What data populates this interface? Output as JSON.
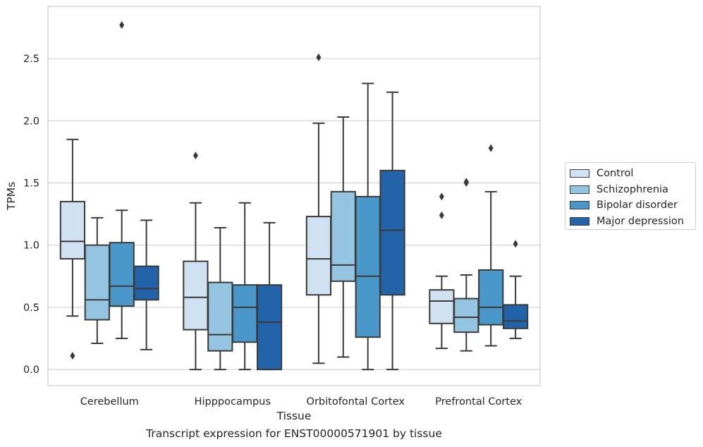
{
  "caption": "Transcript expression for ENST00000571901 by tissue",
  "colors": {
    "Control": "#d0e1f2",
    "Schizophrenia": "#94c4df",
    "Bipolar disorder": "#4a98c9",
    "Major depression": "#2363aa",
    "grid": "#cccccc",
    "box_edge": "#3a3a3a"
  },
  "legend": {
    "placement": "outside-right",
    "items": [
      {
        "label": "Control"
      },
      {
        "label": "Schizophrenia"
      },
      {
        "label": "Bipolar disorder"
      },
      {
        "label": "Major depression"
      }
    ]
  },
  "chart_data": {
    "type": "box",
    "xlabel": "Tissue",
    "ylabel": "TPMs",
    "ylim": [
      -0.13,
      2.92
    ],
    "yticks": [
      "0.0",
      "0.5",
      "1.0",
      "1.5",
      "2.0",
      "2.5"
    ],
    "grid": true,
    "categories": [
      "Cerebellum",
      "Hipppocampus",
      "Orbitofontal Cortex",
      "Prefrontal Cortex"
    ],
    "series": [
      {
        "name": "Control",
        "boxes": [
          {
            "whisker_low": 0.43,
            "q1": 0.89,
            "median": 1.03,
            "q3": 1.35,
            "whisker_high": 1.85,
            "outliers": [
              0.11
            ]
          },
          {
            "whisker_low": 0.0,
            "q1": 0.32,
            "median": 0.58,
            "q3": 0.87,
            "whisker_high": 1.34,
            "outliers": [
              1.72
            ]
          },
          {
            "whisker_low": 0.05,
            "q1": 0.6,
            "median": 0.89,
            "q3": 1.23,
            "whisker_high": 1.98,
            "outliers": [
              2.51
            ]
          },
          {
            "whisker_low": 0.17,
            "q1": 0.37,
            "median": 0.55,
            "q3": 0.64,
            "whisker_high": 0.75,
            "outliers": [
              1.24,
              1.39
            ]
          }
        ]
      },
      {
        "name": "Schizophrenia",
        "boxes": [
          {
            "whisker_low": 0.21,
            "q1": 0.4,
            "median": 0.56,
            "q3": 1.0,
            "whisker_high": 1.22,
            "outliers": []
          },
          {
            "whisker_low": 0.0,
            "q1": 0.15,
            "median": 0.28,
            "q3": 0.7,
            "whisker_high": 1.14,
            "outliers": []
          },
          {
            "whisker_low": 0.1,
            "q1": 0.71,
            "median": 0.84,
            "q3": 1.43,
            "whisker_high": 2.03,
            "outliers": []
          },
          {
            "whisker_low": 0.15,
            "q1": 0.3,
            "median": 0.42,
            "q3": 0.57,
            "whisker_high": 0.76,
            "outliers": [
              1.5,
              1.51
            ]
          }
        ]
      },
      {
        "name": "Bipolar disorder",
        "boxes": [
          {
            "whisker_low": 0.25,
            "q1": 0.51,
            "median": 0.67,
            "q3": 1.02,
            "whisker_high": 1.28,
            "outliers": [
              2.77
            ]
          },
          {
            "whisker_low": 0.0,
            "q1": 0.22,
            "median": 0.5,
            "q3": 0.68,
            "whisker_high": 1.34,
            "outliers": []
          },
          {
            "whisker_low": 0.0,
            "q1": 0.26,
            "median": 0.75,
            "q3": 1.39,
            "whisker_high": 2.3,
            "outliers": []
          },
          {
            "whisker_low": 0.19,
            "q1": 0.36,
            "median": 0.5,
            "q3": 0.8,
            "whisker_high": 1.43,
            "outliers": [
              1.78
            ]
          }
        ]
      },
      {
        "name": "Major depression",
        "boxes": [
          {
            "whisker_low": 0.16,
            "q1": 0.56,
            "median": 0.65,
            "q3": 0.83,
            "whisker_high": 1.2,
            "outliers": []
          },
          {
            "whisker_low": 0.0,
            "q1": 0.0,
            "median": 0.38,
            "q3": 0.68,
            "whisker_high": 1.18,
            "outliers": []
          },
          {
            "whisker_low": 0.0,
            "q1": 0.6,
            "median": 1.12,
            "q3": 1.6,
            "whisker_high": 2.23,
            "outliers": []
          },
          {
            "whisker_low": 0.25,
            "q1": 0.33,
            "median": 0.39,
            "q3": 0.52,
            "whisker_high": 0.75,
            "outliers": [
              1.01
            ]
          }
        ]
      }
    ]
  }
}
